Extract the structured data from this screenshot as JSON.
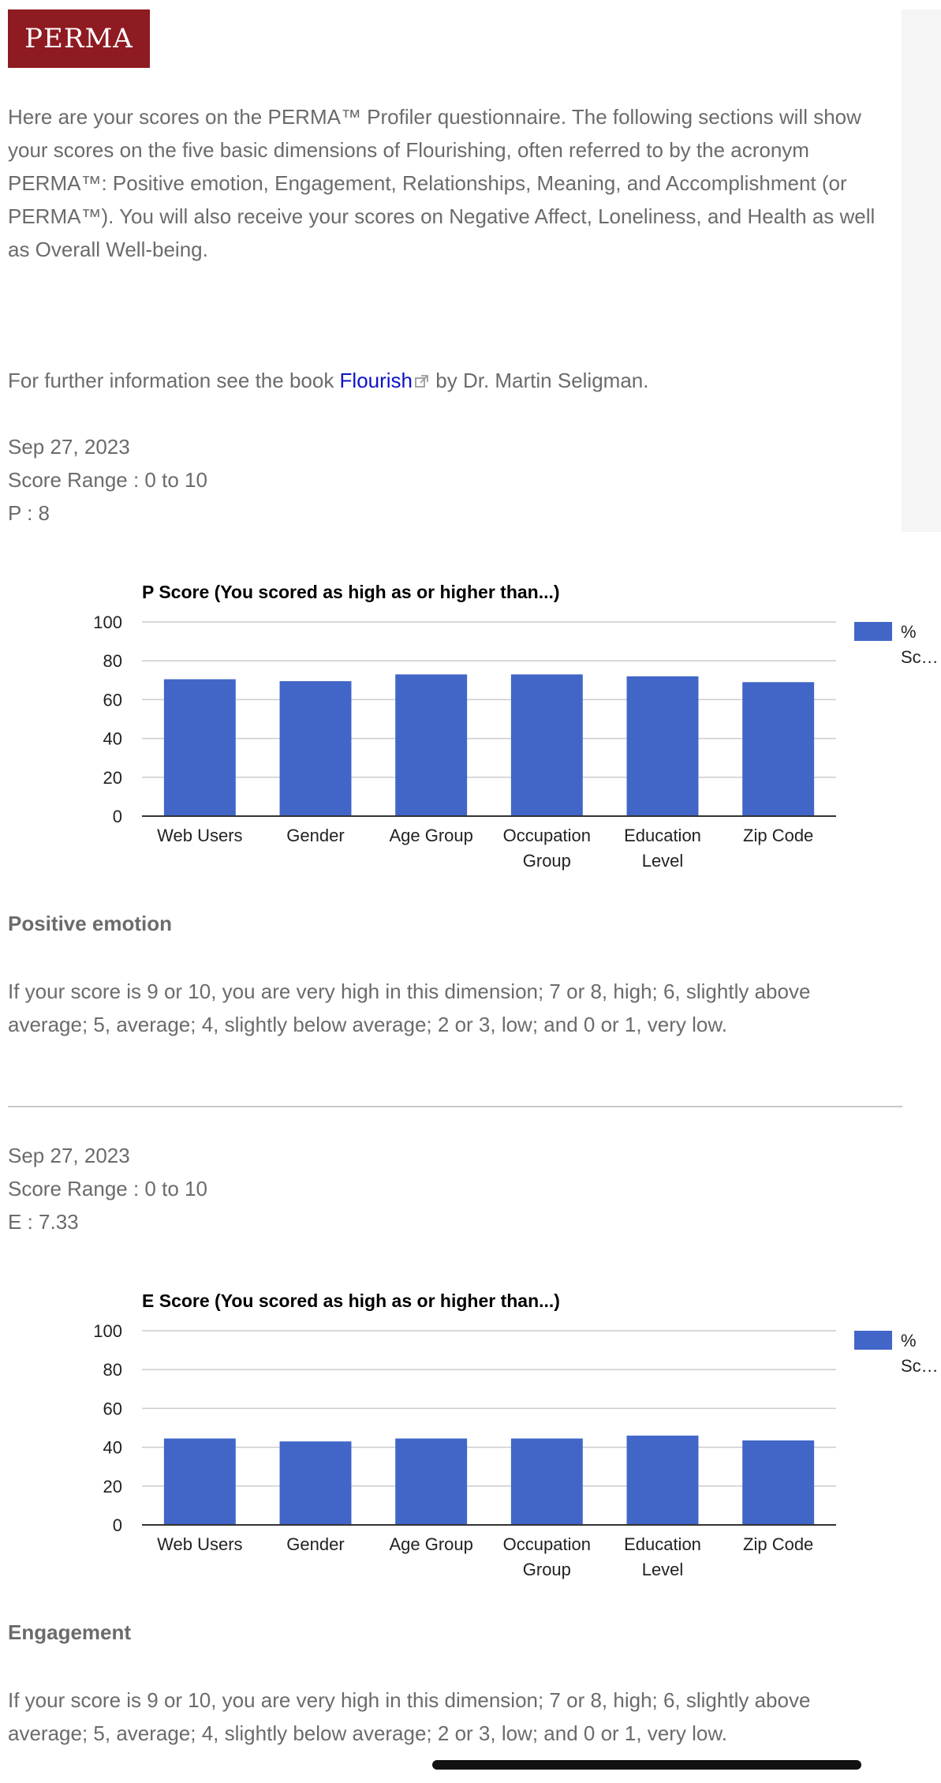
{
  "logo": {
    "text": "PERMA"
  },
  "intro": {
    "text": "Here are your scores on the PERMA™ Profiler questionnaire. The following sections will show your scores on the five basic dimensions of Flourishing, often referred to by the acronym PERMA™: Positive emotion, Engagement, Relationships, Meaning, and Accomplishment (or PERMA™).  You will also receive your scores on Negative Affect, Loneliness, and Health as well as Overall Well-being."
  },
  "further": {
    "prefix": "For further information see the book ",
    "link_text": "Flourish",
    "suffix": " by Dr. Martin Seligman."
  },
  "sections": [
    {
      "date": "Sep 27, 2023",
      "range": "Score Range : 0 to 10",
      "score_line": "P : 8",
      "heading": "Positive emotion",
      "description": "If your score is 9 or 10, you are very high in this dimension; 7 or 8, high; 6, slightly above average; 5, average;  4, slightly below average; 2 or 3, low; and 0 or 1, very low."
    },
    {
      "date": "Sep 27, 2023",
      "range": "Score Range : 0 to 10",
      "score_line": "E : 7.33",
      "heading": "Engagement",
      "description": "If your score is 9 or 10, you are very high in this dimension; 7 or 8, high; 6, slightly above average; 5, average;  4, slightly below average; 2 or 3, low; and 0 or 1, very low."
    }
  ],
  "chart_data": [
    {
      "type": "bar",
      "title": "P Score (You scored as high as or higher than...)",
      "categories": [
        [
          "Web Users"
        ],
        [
          "Gender"
        ],
        [
          "Age Group"
        ],
        [
          "Occupation",
          "Group"
        ],
        [
          "Education",
          "Level"
        ],
        [
          "Zip Code"
        ]
      ],
      "series": [
        {
          "name": "% Sc…",
          "values": [
            70.5,
            69.5,
            73,
            73,
            72,
            69
          ]
        }
      ],
      "ylim": [
        0,
        100
      ],
      "yticks": [
        0,
        20,
        40,
        60,
        80,
        100
      ],
      "grid": true,
      "legend": "right",
      "bar_color": "#4166c8"
    },
    {
      "type": "bar",
      "title": "E Score (You scored as high as or higher than...)",
      "categories": [
        [
          "Web Users"
        ],
        [
          "Gender"
        ],
        [
          "Age Group"
        ],
        [
          "Occupation",
          "Group"
        ],
        [
          "Education",
          "Level"
        ],
        [
          "Zip Code"
        ]
      ],
      "series": [
        {
          "name": "% Sc…",
          "values": [
            44.5,
            43,
            44.5,
            44.5,
            46,
            43.5
          ]
        }
      ],
      "ylim": [
        0,
        100
      ],
      "yticks": [
        0,
        20,
        40,
        60,
        80,
        100
      ],
      "grid": true,
      "legend": "right",
      "bar_color": "#4166c8"
    }
  ]
}
